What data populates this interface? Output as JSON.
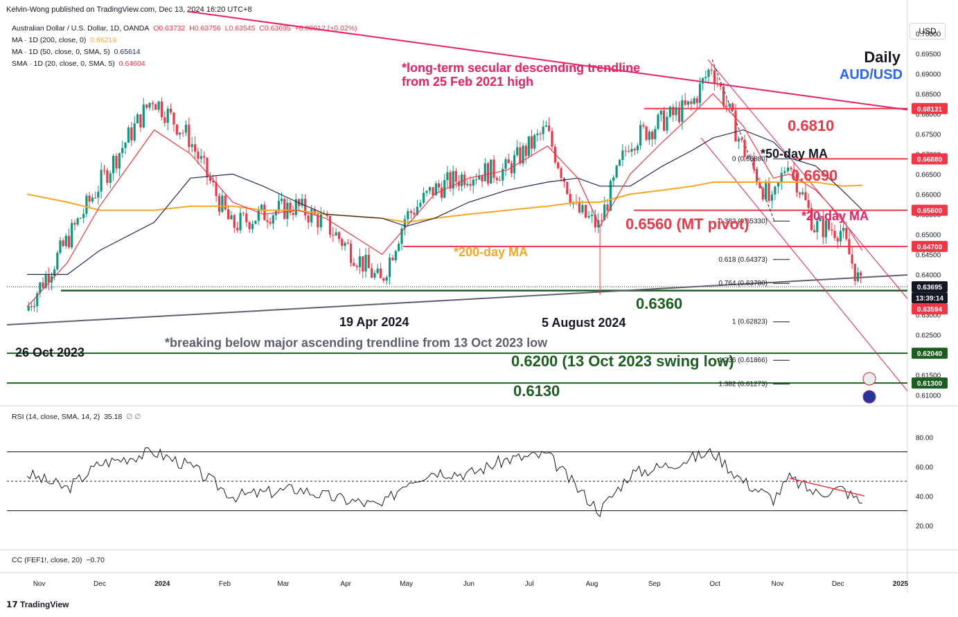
{
  "header": {
    "publisher": "Kelvin-Wong published on TradingView.com, Dec 13, 2024 16:20 UTC+8"
  },
  "legend": {
    "symbol": "Australian Dollar / U.S. Dollar, 1D, OANDA",
    "o": "O0.63732",
    "h": "H0.63756",
    "l": "L0.63545",
    "c": "C0.63695",
    "chg": "+0.00012 (+0.02%)",
    "ma200": "MA · 1D (200, close, 0)",
    "ma200_val": "0.66219",
    "ma50": "MA · 1D (50, close, 0, SMA, 5)",
    "ma50_val": "0.65614",
    "sma20": "SMA · 1D (20, close, 0, SMA, 5)",
    "sma20_val": "0.64604"
  },
  "currency_button": "USD",
  "title": {
    "timeframe": "Daily",
    "symbol": "AUD/USD"
  },
  "colors": {
    "up": "#089981",
    "down": "#f23645",
    "ma200": "#f5a623",
    "ma50": "#1e2a4a",
    "ma20": "#f23645",
    "trend": "#e91e63",
    "level_red": "#f23645",
    "level_green": "#1b5e20",
    "rsi": "#131722",
    "axis_text": "#131722"
  },
  "annotations": {
    "trend_note_1": "*long-term secular descending trendline",
    "trend_note_2": "from 25 Feb 2021 high",
    "ma50": "*50-day MA",
    "ma20": "*20-day MA",
    "ma200": "*200-day MA",
    "lvl_6810": "0.6810",
    "lvl_6690": "0.6690",
    "lvl_6560": "0.6560 (MT pivot)",
    "lvl_6360": "0.6360",
    "lvl_6200": "0.6200 (13 Oct 2023 swing low)",
    "lvl_6130": "0.6130",
    "apr": "19 Apr 2024",
    "aug": "5 August 2024",
    "oct23": "26 Oct 2023",
    "break_note": "*breaking below major ascending trendline from 13 Oct 2023 low"
  },
  "fib": [
    "0 (0.66880)",
    "0.382 (0.65330)",
    "0.618 (0.64373)",
    "0.764 (0.63780)",
    "1 (0.62823)",
    "1.236 (0.61866)",
    "1.382 (0.61273)"
  ],
  "price_axis": [
    "0.70000",
    "0.69500",
    "0.69000",
    "0.68500",
    "0.68000",
    "0.67500",
    "0.67000",
    "0.66500",
    "0.66000",
    "0.65500",
    "0.65000",
    "0.64500",
    "0.64000",
    "0.63500",
    "0.63000",
    "0.62500",
    "0.62000",
    "0.61500",
    "0.61000"
  ],
  "price_tags": [
    {
      "label": "0.68131",
      "bg": "#f23645"
    },
    {
      "label": "0.66880",
      "bg": "#f23645"
    },
    {
      "label": "0.65600",
      "bg": "#f23645"
    },
    {
      "label": "0.64700",
      "bg": "#f23645"
    },
    {
      "label": "0.63695",
      "bg": "#131722"
    },
    {
      "label": "13:39:14",
      "bg": "#131722"
    },
    {
      "label": "0.63594",
      "bg": "#f23645"
    },
    {
      "label": "0.62040",
      "bg": "#1b5e20"
    },
    {
      "label": "0.61300",
      "bg": "#1b5e20"
    }
  ],
  "rsi": {
    "label": "RSI (14, close, SMA, 14, 2)",
    "value": "35.18",
    "extra": "∅ ∅",
    "axis": [
      "80.00",
      "60.00",
      "40.00",
      "20.00"
    ]
  },
  "cc": {
    "label": "CC (FEF1!, close, 20)",
    "value": "−0.70"
  },
  "time_axis": [
    "Nov",
    "Dec",
    "2024",
    "Feb",
    "Mar",
    "Apr",
    "May",
    "Jun",
    "Jul",
    "Aug",
    "Sep",
    "Oct",
    "Nov",
    "Dec",
    "2025"
  ],
  "footer": {
    "brand": "TradingView"
  },
  "chart_data": {
    "type": "line",
    "title": "AUD/USD",
    "ylim": [
      0.6075,
      0.7035
    ],
    "x": [
      "2023-10-26",
      "2023-11-15",
      "2023-12-01",
      "2023-12-28",
      "2024-01-15",
      "2024-02-05",
      "2024-02-20",
      "2024-03-08",
      "2024-03-22",
      "2024-04-19",
      "2024-05-01",
      "2024-05-15",
      "2024-06-01",
      "2024-06-20",
      "2024-07-10",
      "2024-07-25",
      "2024-08-05",
      "2024-08-20",
      "2024-09-05",
      "2024-09-20",
      "2024-09-30",
      "2024-10-15",
      "2024-10-30",
      "2024-11-07",
      "2024-11-20",
      "2024-12-03",
      "2024-12-13"
    ],
    "series": [
      {
        "name": "Close",
        "values": [
          0.631,
          0.648,
          0.662,
          0.684,
          0.674,
          0.652,
          0.655,
          0.657,
          0.653,
          0.638,
          0.654,
          0.661,
          0.665,
          0.666,
          0.676,
          0.656,
          0.652,
          0.673,
          0.678,
          0.682,
          0.692,
          0.672,
          0.657,
          0.669,
          0.652,
          0.651,
          0.6369
        ]
      },
      {
        "name": "*200-day MA",
        "values": [
          0.66,
          0.658,
          0.656,
          0.656,
          0.657,
          0.657,
          0.656,
          0.656,
          0.655,
          0.654,
          0.653,
          0.654,
          0.655,
          0.656,
          0.657,
          0.658,
          0.658,
          0.66,
          0.661,
          0.662,
          0.663,
          0.663,
          0.663,
          0.663,
          0.663,
          0.662,
          0.6622
        ]
      },
      {
        "name": "*50-day MA",
        "values": [
          0.64,
          0.64,
          0.646,
          0.653,
          0.664,
          0.665,
          0.662,
          0.658,
          0.655,
          0.654,
          0.652,
          0.654,
          0.658,
          0.661,
          0.663,
          0.664,
          0.662,
          0.662,
          0.667,
          0.671,
          0.674,
          0.676,
          0.673,
          0.669,
          0.667,
          0.661,
          0.6561
        ]
      },
      {
        "name": "*20-day MA",
        "values": [
          0.632,
          0.643,
          0.657,
          0.676,
          0.67,
          0.658,
          0.655,
          0.656,
          0.654,
          0.645,
          0.652,
          0.66,
          0.664,
          0.666,
          0.672,
          0.664,
          0.652,
          0.665,
          0.673,
          0.68,
          0.685,
          0.677,
          0.664,
          0.665,
          0.661,
          0.654,
          0.646
        ]
      }
    ],
    "levels": [
      0.6813,
      0.6688,
      0.656,
      0.647,
      0.636,
      0.6204,
      0.613
    ]
  }
}
